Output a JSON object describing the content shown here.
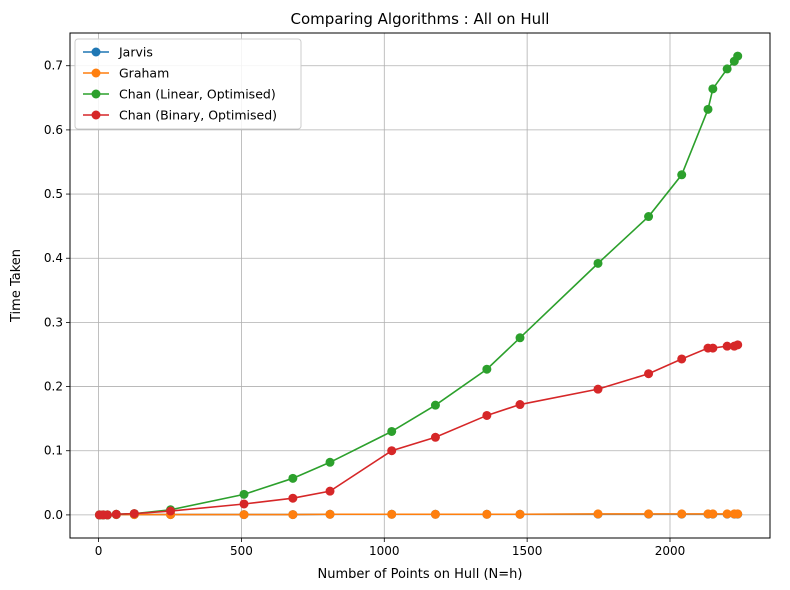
{
  "chart_data": {
    "type": "line",
    "title": "Comparing Algorithms : All on Hull",
    "xlabel": "Number of Points on Hull (N=h)",
    "ylabel": "Time Taken",
    "xlim": [
      -100,
      2350
    ],
    "ylim": [
      -0.036,
      0.751
    ],
    "xticks": [
      0,
      500,
      1000,
      1500,
      2000
    ],
    "yticks": [
      0.0,
      0.1,
      0.2,
      0.3,
      0.4,
      0.5,
      0.6,
      0.7
    ],
    "grid": true,
    "legend_position": "top-left",
    "x": [
      3,
      16,
      31,
      62,
      125,
      252,
      509,
      680,
      810,
      1026,
      1179,
      1359,
      1475,
      1748,
      1925,
      2041,
      2133,
      2150,
      2200,
      2225,
      2237
    ],
    "series": [
      {
        "name": "Jarvis",
        "color": "#1f77b4",
        "values": [
          0,
          0,
          0,
          0.0005,
          0.0005,
          0.0005,
          0.0005,
          0.0005,
          0.001,
          0.001,
          0.001,
          0.001,
          0.001,
          0.0012,
          0.0012,
          0.0012,
          0.0012,
          0.0012,
          0.0012,
          0.0012,
          0.0012
        ]
      },
      {
        "name": "Graham",
        "color": "#ff7f0e",
        "values": [
          0,
          0,
          0,
          0.0005,
          0.0005,
          0.0005,
          0.0005,
          0.0005,
          0.001,
          0.001,
          0.001,
          0.001,
          0.001,
          0.0015,
          0.0015,
          0.0015,
          0.0015,
          0.0015,
          0.0015,
          0.0015,
          0.0015
        ]
      },
      {
        "name": "Chan (Linear, Optimised)",
        "color": "#2ca02c",
        "values": [
          0,
          0,
          0,
          0.001,
          0.002,
          0.008,
          0.032,
          0.057,
          0.082,
          0.13,
          0.171,
          0.227,
          0.276,
          0.392,
          0.465,
          0.53,
          0.632,
          0.664,
          0.695,
          0.707,
          0.715
        ]
      },
      {
        "name": "Chan (Binary, Optimised)",
        "color": "#d62728",
        "values": [
          0,
          0,
          0,
          0.001,
          0.002,
          0.006,
          0.017,
          0.026,
          0.037,
          0.1,
          0.121,
          0.155,
          0.172,
          0.196,
          0.22,
          0.243,
          0.26,
          0.26,
          0.263,
          0.263,
          0.265
        ]
      }
    ]
  }
}
